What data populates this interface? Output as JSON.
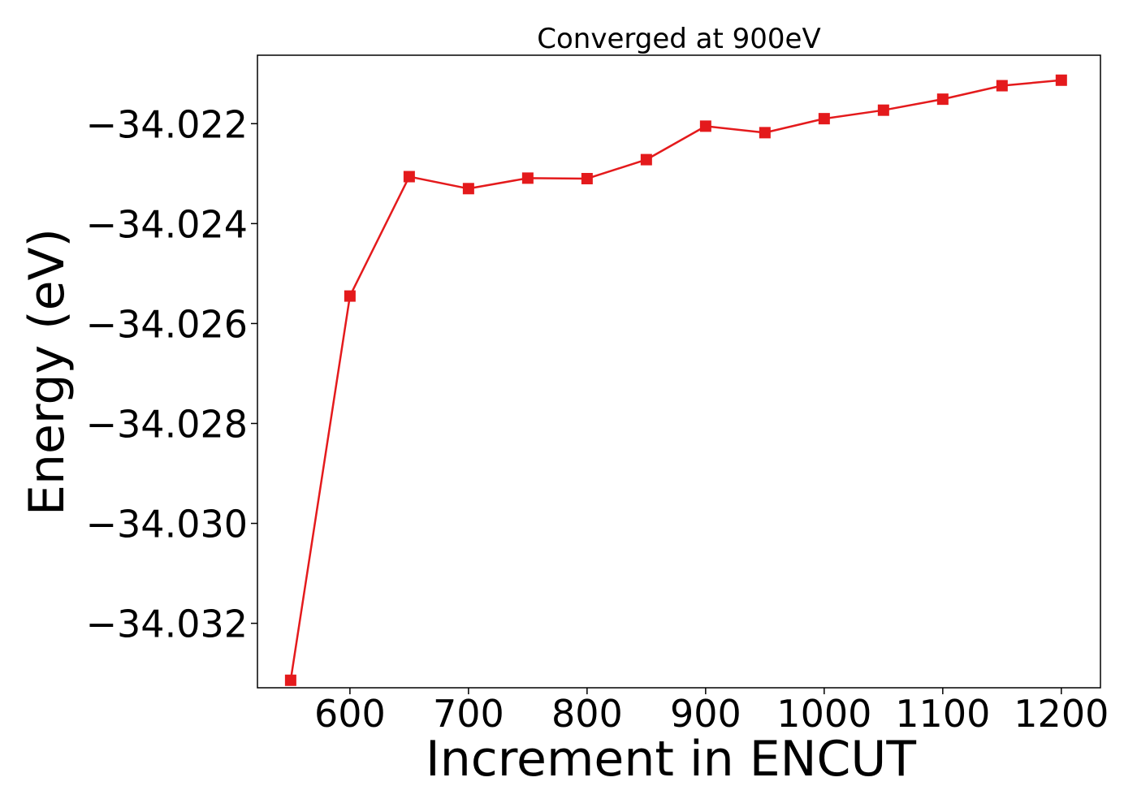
{
  "chart_data": {
    "type": "line",
    "title": "Converged at 900eV",
    "xlabel": "Increment in ENCUT",
    "ylabel": "Energy (eV)",
    "xlim": [
      522,
      1233
    ],
    "ylim": [
      -34.03329,
      -34.02063
    ],
    "x_ticks": [
      600,
      700,
      800,
      900,
      1000,
      1100,
      1200
    ],
    "x_tick_labels": [
      "600",
      "700",
      "800",
      "900",
      "1000",
      "1100",
      "1200"
    ],
    "y_ticks": [
      -34.022,
      -34.024,
      -34.026,
      -34.028,
      -34.03,
      -34.032
    ],
    "y_tick_labels": [
      "−34.022",
      "−34.024",
      "−34.026",
      "−34.028",
      "−34.030",
      "−34.032"
    ],
    "grid": false,
    "series": [
      {
        "color": "#e41a1c",
        "marker": "square",
        "x": [
          550,
          600,
          650,
          700,
          750,
          800,
          850,
          900,
          950,
          1000,
          1050,
          1100,
          1150,
          1200
        ],
        "y": [
          -34.03314,
          -34.02545,
          -34.02306,
          -34.0233,
          -34.02309,
          -34.0231,
          -34.02272,
          -34.02205,
          -34.02218,
          -34.0219,
          -34.02173,
          -34.02151,
          -34.02124,
          -34.02113
        ]
      }
    ]
  }
}
